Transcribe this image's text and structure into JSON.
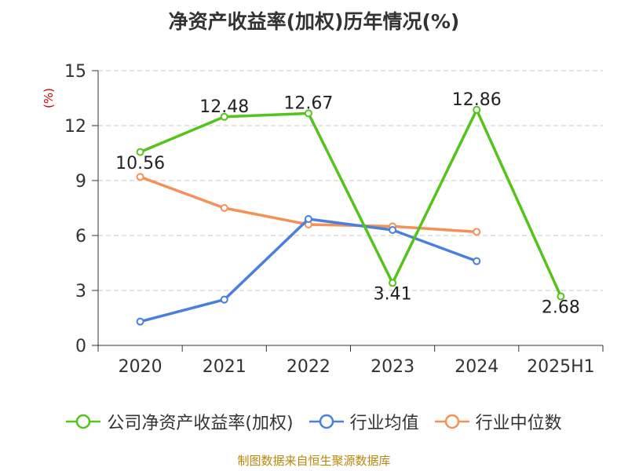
{
  "chart_data": {
    "type": "line",
    "title": "净资产收益率(加权)历年情况(%)",
    "ylabel": "(%)",
    "xlabel": "",
    "categories": [
      "2020",
      "2021",
      "2022",
      "2023",
      "2024",
      "2025H1"
    ],
    "ylim": [
      0,
      15
    ],
    "yticks": [
      0,
      3,
      6,
      9,
      12,
      15
    ],
    "grid": true,
    "legend_position": "bottom",
    "series": [
      {
        "name": "公司净资产收益率(加权)",
        "color": "#52c41a",
        "values": [
          10.56,
          12.48,
          12.67,
          3.41,
          12.86,
          2.68
        ],
        "labels": [
          "10.56",
          "12.48",
          "12.67",
          "3.41",
          "12.86",
          "2.68"
        ]
      },
      {
        "name": "行业均值",
        "color": "#4a7fdd",
        "values": [
          1.3,
          2.5,
          6.9,
          6.3,
          4.6,
          null
        ]
      },
      {
        "name": "行业中位数",
        "color": "#f59158",
        "values": [
          9.2,
          7.5,
          6.6,
          6.5,
          6.2,
          null
        ]
      }
    ]
  },
  "footer": {
    "source": "制图数据来自恒生聚源数据库"
  }
}
